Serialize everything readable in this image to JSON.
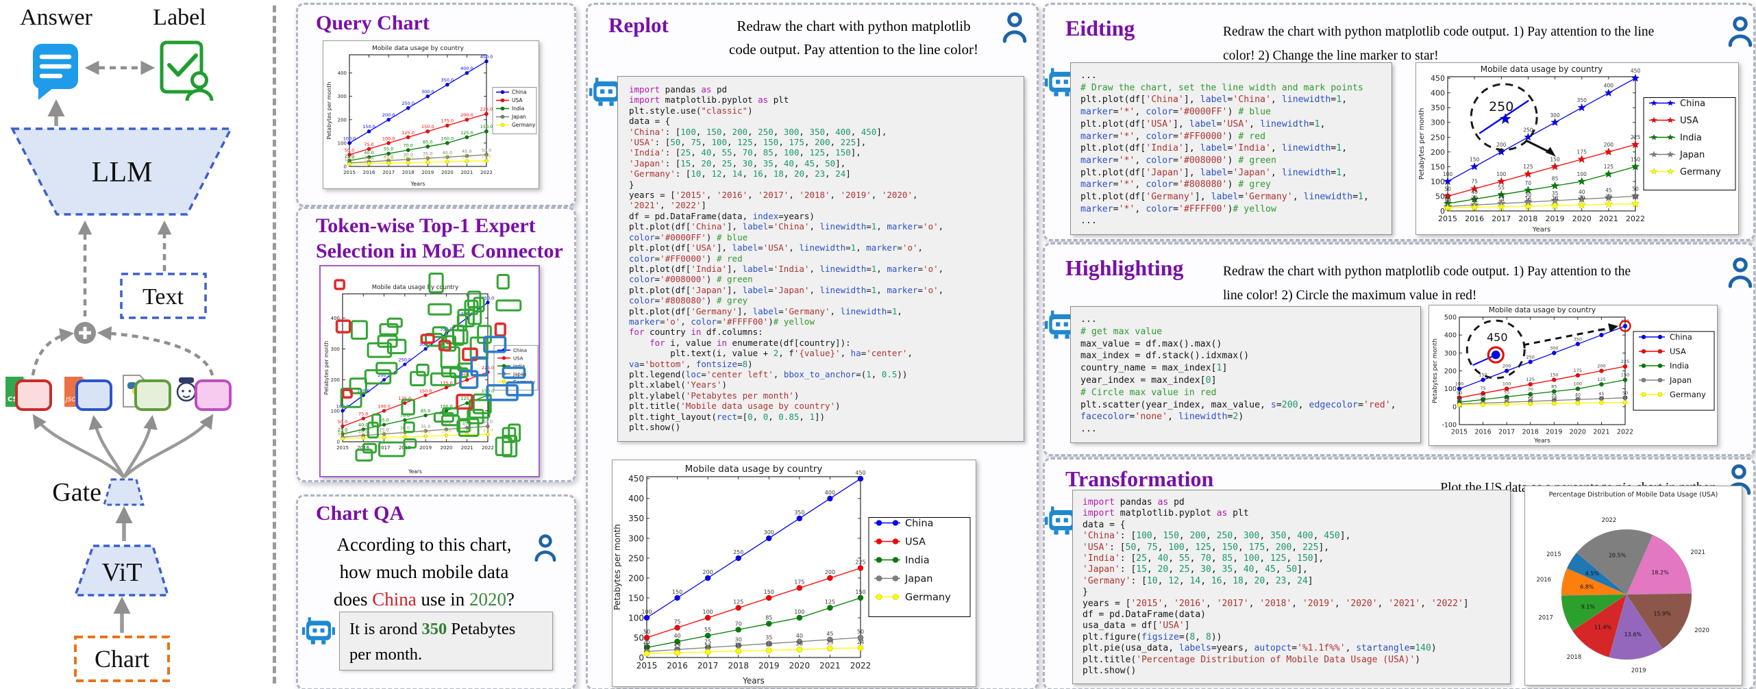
{
  "colors": {
    "panel_title_purple": "#7A0FA6",
    "robot_blue": "#1E88D2",
    "user_blue": "#1D63A8",
    "qa_china_red": "#CC2020",
    "qa_green": "#3A8A3A",
    "series": {
      "China": "#0000FF",
      "USA": "#FF0000",
      "India": "#008000",
      "Japan": "#808080",
      "Germany": "#FFFF00"
    },
    "token_overlay": {
      "green": "#33A433",
      "red": "#E02D2D",
      "blue": "#2E7BC8"
    }
  },
  "diagram": {
    "answer": "Answer",
    "label": "Label",
    "llm": "LLM",
    "text": "Text",
    "gate": "Gate",
    "vit": "ViT",
    "chart": "Chart",
    "expert_files": [
      "CSV",
      "JSO",
      "python",
      "mascot"
    ]
  },
  "panels": {
    "query_chart": {
      "title": "Query Chart"
    },
    "token_wise": {
      "title_line1": "Token-wise Top-1 Expert",
      "title_line2": "Selection in MoE Connector"
    },
    "chart_qa": {
      "title": "Chart QA",
      "question_lines": [
        [
          {
            "t": "According to this chart,"
          }
        ],
        [
          {
            "t": "how much mobile data"
          }
        ],
        [
          {
            "t": "does "
          },
          {
            "t": "China",
            "c": "#CC2020"
          },
          {
            "t": " use in "
          },
          {
            "t": "2020",
            "c": "#3A8A3A"
          },
          {
            "t": "?"
          }
        ]
      ],
      "answer_lines": [
        [
          {
            "t": "It is arond "
          },
          {
            "t": "350",
            "c": "#2F7D2F",
            "b": true
          },
          {
            "t": " Petabytes"
          }
        ],
        [
          {
            "t": "per month."
          }
        ]
      ]
    },
    "replot": {
      "title": "Replot",
      "instruction_lines": [
        "Redraw the chart with python matplotlib",
        "code output. Pay attention to the line color!"
      ],
      "code": [
        "import pandas as pd",
        "import matplotlib.pyplot as plt",
        "plt.style.use(\"classic\")",
        "data = {",
        "'China': [100, 150, 200, 250, 300, 350, 400, 450],",
        "'USA': [50, 75, 100, 125, 150, 175, 200, 225],",
        "'India': [25, 40, 55, 70, 85, 100, 125, 150],",
        "'Japan': [15, 20, 25, 30, 35, 40, 45, 50],",
        "'Germany': [10, 12, 14, 16, 18, 20, 23, 24]",
        "}",
        "years = ['2015', '2016', '2017', '2018', '2019', '2020',",
        "'2021', '2022']",
        "df = pd.DataFrame(data, index=years)",
        "plt.plot(df['China'], label='China', linewidth=1, marker='o',",
        "color='#0000FF') # blue",
        "plt.plot(df['USA'], label='USA', linewidth=1, marker='o',",
        "color='#FF0000') # red",
        "plt.plot(df['India'], label='India', linewidth=1, marker='o',",
        "color='#008000') # green",
        "plt.plot(df['Japan'], label='Japan', linewidth=1, marker='o',",
        "color='#808080') # grey",
        "plt.plot(df['Germany'], label='Germany', linewidth=1,",
        "marker='o', color='#FFFF00')# yellow",
        "for country in df.columns:",
        "    for i, value in enumerate(df[country]):",
        "        plt.text(i, value + 2, f'{value}', ha='center',",
        "va='bottom', fontsize=8)",
        "plt.legend(loc='center left', bbox_to_anchor=(1, 0.5))",
        "plt.xlabel('Years')",
        "plt.ylabel('Petabytes per month')",
        "plt.title('Mobile data usage by country')",
        "plt.tight_layout(rect=[0, 0, 0.85, 1])",
        "plt.show()"
      ]
    },
    "eidting": {
      "title": "Eidting",
      "instruction_lines": [
        "Redraw the chart with python matplotlib code output. 1) Pay attention to the line",
        "color! 2) Change the line marker to star!"
      ],
      "code": [
        "...",
        "# Draw the chart, set the line width and mark points",
        "plt.plot(df['China'], label='China', linewidth=1,",
        "marker='*', color='#0000FF') # blue",
        "plt.plot(df['USA'], label='USA', linewidth=1,",
        "marker='*', color='#FF0000') # red",
        "plt.plot(df['India'], label='India', linewidth=1,",
        "marker='*', color='#008000') # green",
        "plt.plot(df['Japan'], label='Japan', linewidth=1,",
        "marker='*', color='#808080') # grey",
        "plt.plot(df['Germany'], label='Germany', linewidth=1,",
        "marker='*', color='#FFFF00')# yellow",
        "..."
      ]
    },
    "highlighting": {
      "title": "Highlighting",
      "instruction_lines": [
        "Redraw the chart with python matplotlib code output.  1) Pay attention to the",
        "line color! 2) Circle the maximum value in red!"
      ],
      "code": [
        "...",
        "# get max value",
        "max_value = df.max().max()",
        "max_index = df.stack().idxmax()",
        "country_name = max_index[1]",
        "year_index = max_index[0]",
        "# Circle max value in red",
        "plt.scatter(year_index, max_value, s=200, edgecolor='red',",
        "facecolor='none', linewidth=2)",
        "..."
      ]
    },
    "transformation": {
      "title": "Transformation",
      "instruction_lines": [
        "Plot the US data as a percentage pie chart in python."
      ],
      "code": [
        "import pandas as pd",
        "import matplotlib.pyplot as plt",
        "data = {",
        "'China': [100, 150, 200, 250, 300, 350, 400, 450],",
        "'USA': [50, 75, 100, 125, 150, 175, 200, 225],",
        "'India': [25, 40, 55, 70, 85, 100, 125, 150],",
        "'Japan': [15, 20, 25, 30, 35, 40, 45, 50],",
        "'Germany': [10, 12, 14, 16, 18, 20, 23, 24]",
        "}",
        "years = ['2015', '2016', '2017', '2018', '2019', '2020', '2021', '2022']",
        "df = pd.DataFrame(data)",
        "usa_data = df['USA']",
        "plt.figure(figsize=(8, 8))",
        "plt.pie(usa_data, labels=years, autopct='%1.1f%%', startangle=140)",
        "plt.title('Percentage Distribution of Mobile Data Usage (USA)')",
        "plt.show()"
      ]
    }
  },
  "chart_data": [
    {
      "id": "query-chart",
      "type": "line",
      "title": "Mobile data usage by country",
      "xlabel": "Years",
      "ylabel": "Petabytes per month",
      "x": [
        "2015",
        "2016",
        "2017",
        "2018",
        "2019",
        "2020",
        "2021",
        "2022"
      ],
      "series": [
        {
          "name": "China",
          "color": "#0000FF",
          "values": [
            100,
            150,
            200,
            250,
            300,
            350,
            400,
            450
          ]
        },
        {
          "name": "USA",
          "color": "#FF0000",
          "values": [
            50,
            75,
            100,
            125,
            150,
            175,
            200,
            225
          ]
        },
        {
          "name": "India",
          "color": "#008000",
          "values": [
            25,
            40,
            55,
            70,
            85,
            100,
            125,
            150
          ]
        },
        {
          "name": "Japan",
          "color": "#808080",
          "values": [
            15,
            20,
            25,
            30,
            35,
            40,
            45,
            50
          ]
        },
        {
          "name": "Germany",
          "color": "#FFFF00",
          "values": [
            10,
            12,
            14,
            16,
            18,
            20,
            23,
            24
          ]
        }
      ],
      "yticks": [
        0,
        100,
        200,
        300,
        400
      ],
      "ylim": [
        0,
        478
      ],
      "legend": "outside-right",
      "marker": "o",
      "value_labels": "series-color",
      "value_format": "1dp",
      "grid": false
    },
    {
      "id": "token-chart",
      "type": "line",
      "title": "Mobile data usage by country",
      "xlabel": "Years",
      "ylabel": "Petabytes per month",
      "x": [
        "2015",
        "2016",
        "2017",
        "2018",
        "2019",
        "2020",
        "2021",
        "2022"
      ],
      "series": [
        {
          "name": "China",
          "color": "#0000FF",
          "values": [
            100,
            150,
            200,
            250,
            300,
            350,
            400,
            450
          ]
        },
        {
          "name": "USA",
          "color": "#FF0000",
          "values": [
            50,
            75,
            100,
            125,
            150,
            175,
            200,
            225
          ]
        },
        {
          "name": "India",
          "color": "#008000",
          "values": [
            25,
            40,
            55,
            70,
            85,
            100,
            125,
            150
          ]
        },
        {
          "name": "Japan",
          "color": "#808080",
          "values": [
            15,
            20,
            25,
            30,
            35,
            40,
            45,
            50
          ]
        },
        {
          "name": "Germany",
          "color": "#FFFF00",
          "values": [
            10,
            12,
            14,
            16,
            18,
            20,
            23,
            24
          ]
        }
      ],
      "yticks": [
        0,
        100,
        200,
        300,
        400
      ],
      "ylim": [
        0,
        478
      ],
      "legend": "outside-right",
      "marker": "o",
      "value_labels": "series-color",
      "value_format": "1dp",
      "grid": false,
      "overlay": {
        "green": 36,
        "red": 8,
        "blue": 6,
        "colors": {
          "green": "#33A433",
          "red": "#E02D2D",
          "blue": "#2E7BC8"
        }
      }
    },
    {
      "id": "replot-chart",
      "type": "line",
      "title": "Mobile data usage by country",
      "xlabel": "Years",
      "ylabel": "Petabytes per month",
      "x": [
        "2015",
        "2016",
        "2017",
        "2018",
        "2019",
        "2020",
        "2021",
        "2022"
      ],
      "series": [
        {
          "name": "China",
          "color": "#0000FF",
          "values": [
            100,
            150,
            200,
            250,
            300,
            350,
            400,
            450
          ]
        },
        {
          "name": "USA",
          "color": "#FF0000",
          "values": [
            50,
            75,
            100,
            125,
            150,
            175,
            200,
            225
          ]
        },
        {
          "name": "India",
          "color": "#008000",
          "values": [
            25,
            40,
            55,
            70,
            85,
            100,
            125,
            150
          ]
        },
        {
          "name": "Japan",
          "color": "#808080",
          "values": [
            15,
            20,
            25,
            30,
            35,
            40,
            45,
            50
          ]
        },
        {
          "name": "Germany",
          "color": "#FFFF00",
          "values": [
            10,
            12,
            14,
            16,
            18,
            20,
            23,
            24
          ]
        }
      ],
      "yticks": [
        0,
        50,
        100,
        150,
        200,
        250,
        300,
        350,
        400,
        450
      ],
      "ylim": [
        0,
        455
      ],
      "legend": "inside-box",
      "marker": "o",
      "value_labels": "black",
      "value_format": "int",
      "grid": false
    },
    {
      "id": "eidting-chart",
      "type": "line",
      "title": "Mobile data usage by country",
      "xlabel": "Years",
      "ylabel": "Petabytes per month",
      "x": [
        "2015",
        "2016",
        "2017",
        "2018",
        "2019",
        "2020",
        "2021",
        "2022"
      ],
      "series": [
        {
          "name": "China",
          "color": "#0000FF",
          "values": [
            100,
            150,
            200,
            250,
            300,
            350,
            400,
            450
          ]
        },
        {
          "name": "USA",
          "color": "#FF0000",
          "values": [
            50,
            75,
            100,
            125,
            150,
            175,
            200,
            225
          ]
        },
        {
          "name": "India",
          "color": "#008000",
          "values": [
            25,
            40,
            55,
            70,
            85,
            100,
            125,
            150
          ]
        },
        {
          "name": "Japan",
          "color": "#808080",
          "values": [
            15,
            20,
            25,
            30,
            35,
            40,
            45,
            50
          ]
        },
        {
          "name": "Germany",
          "color": "#FFFF00",
          "values": [
            10,
            12,
            14,
            16,
            18,
            20,
            23,
            24
          ]
        }
      ],
      "yticks": [
        0,
        50,
        100,
        150,
        200,
        250,
        300,
        350,
        400,
        450
      ],
      "ylim": [
        0,
        455
      ],
      "legend": "inside-box",
      "marker": "star",
      "value_labels": "black",
      "value_format": "int",
      "grid": false,
      "annotation": {
        "kind": "zoom-marker",
        "text": "250",
        "target_series": "China",
        "target_index": 3
      }
    },
    {
      "id": "highlighting-chart",
      "type": "line",
      "title": "Mobile data usage by country",
      "xlabel": "Years",
      "ylabel": "Petabytes per month",
      "x": [
        "2015",
        "2016",
        "2017",
        "2018",
        "2019",
        "2020",
        "2021",
        "2022"
      ],
      "series": [
        {
          "name": "China",
          "color": "#0000FF",
          "values": [
            100,
            150,
            200,
            250,
            300,
            350,
            400,
            450
          ]
        },
        {
          "name": "USA",
          "color": "#FF0000",
          "values": [
            50,
            75,
            100,
            125,
            150,
            175,
            200,
            225
          ]
        },
        {
          "name": "India",
          "color": "#008000",
          "values": [
            25,
            40,
            55,
            70,
            85,
            100,
            125,
            150
          ]
        },
        {
          "name": "Japan",
          "color": "#808080",
          "values": [
            15,
            20,
            25,
            30,
            35,
            40,
            45,
            50
          ]
        },
        {
          "name": "Germany",
          "color": "#FFFF00",
          "values": [
            10,
            12,
            14,
            16,
            18,
            20,
            23,
            24
          ]
        }
      ],
      "yticks": [
        -100,
        0,
        100,
        200,
        300,
        400,
        500
      ],
      "ylim": [
        -100,
        500
      ],
      "legend": "inside-box",
      "marker": "o",
      "value_labels": "black",
      "value_format": "int",
      "grid": false,
      "annotation": {
        "kind": "zoom-max",
        "text": "450",
        "target_series": "China",
        "target_index": 7,
        "ring_color": "#E01010"
      }
    },
    {
      "id": "usa-pie",
      "type": "pie",
      "title": "Percentage Distribution of Mobile Data Usage (USA)",
      "labels": [
        "2015",
        "2016",
        "2017",
        "2018",
        "2019",
        "2020",
        "2021",
        "2022"
      ],
      "values": [
        50,
        75,
        100,
        125,
        150,
        175,
        200,
        225
      ],
      "pcts": [
        "4.5%",
        "6.8%",
        "9.1%",
        "11.4%",
        "13.6%",
        "15.9%",
        "18.2%",
        "20.5%"
      ],
      "colors": [
        "#1f77b4",
        "#ff7f0e",
        "#2ca02c",
        "#d62728",
        "#9467bd",
        "#8c564b",
        "#e377c2",
        "#7f7f7f"
      ],
      "startangle": 140,
      "direction": "counterclockwise"
    }
  ]
}
